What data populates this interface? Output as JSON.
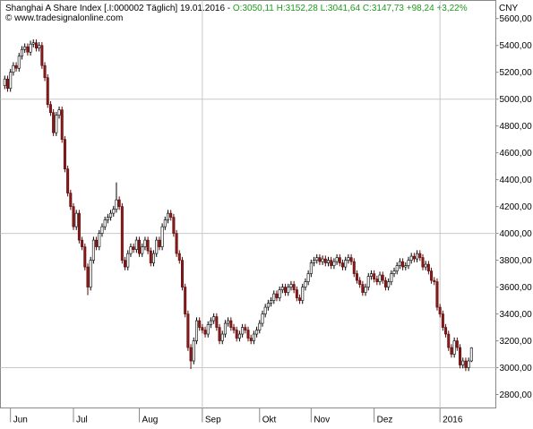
{
  "chart_data": {
    "type": "candlestick",
    "title": "Shanghai A Share Index [.I:000002  Täglich] 19.01.2016 -",
    "subtitle": "O:3050,11  H:3152,28  L:3041,64  C:3147,73  +98,24  +3,22%",
    "source": "© www.tradesignalonline.com",
    "currency": "CNY",
    "colors": {
      "up": "#ffffff",
      "down": "#8b1a1a",
      "quote": "#1e9a1e"
    },
    "xlim": [
      -1.5,
      171.5
    ],
    "xticks": [
      {
        "value": 2,
        "label": "Jun"
      },
      {
        "value": 24,
        "label": "Jul"
      },
      {
        "value": 47,
        "label": "Aug"
      },
      {
        "value": 69,
        "label": "Sep"
      },
      {
        "value": 89,
        "label": "Okt"
      },
      {
        "value": 107,
        "label": "Nov"
      },
      {
        "value": 129,
        "label": "Dez"
      },
      {
        "value": 152,
        "label": "2016"
      }
    ],
    "grid_x": [
      69,
      152
    ],
    "grid_y": [
      3000,
      4000,
      5000
    ],
    "ylim": [
      2700,
      5735
    ],
    "yticks": [
      {
        "value": 2800,
        "label": "2800,00"
      },
      {
        "value": 3000,
        "label": "3000,00"
      },
      {
        "value": 3200,
        "label": "3200,00"
      },
      {
        "value": 3400,
        "label": "3400,00"
      },
      {
        "value": 3600,
        "label": "3600,00"
      },
      {
        "value": 3800,
        "label": "3800,00"
      },
      {
        "value": 4000,
        "label": "4000,00"
      },
      {
        "value": 4200,
        "label": "4200,00"
      },
      {
        "value": 4400,
        "label": "4400,00"
      },
      {
        "value": 4600,
        "label": "4600,00"
      },
      {
        "value": 4800,
        "label": "4800,00"
      },
      {
        "value": 5000,
        "label": "5000,00"
      },
      {
        "value": 5200,
        "label": "5200,00"
      },
      {
        "value": 5400,
        "label": "5400,00"
      },
      {
        "value": 5600,
        "label": "5600,00"
      }
    ],
    "open": [
      5100,
      5150,
      5080,
      5200,
      5250,
      5230,
      5320,
      5370,
      5390,
      5350,
      5410,
      5420,
      5380,
      5400,
      5250,
      5160,
      4960,
      4900,
      4750,
      4880,
      4920,
      4700,
      4480,
      4300,
      4200,
      4050,
      4150,
      3950,
      3900,
      3750,
      3600,
      3800,
      3950,
      3900,
      4000,
      4050,
      4100,
      4120,
      4150,
      4180,
      4250,
      4200,
      3800,
      3750,
      3850,
      3900,
      3880,
      3950,
      3850,
      3900,
      3950,
      3870,
      3780,
      3850,
      3950,
      3900,
      4050,
      4100,
      4150,
      4120,
      4000,
      3850,
      3800,
      3600,
      3400,
      3150,
      3050,
      3200,
      3350,
      3300,
      3280,
      3250,
      3320,
      3350,
      3380,
      3300,
      3200,
      3250,
      3330,
      3350,
      3300,
      3280,
      3220,
      3250,
      3300,
      3280,
      3220,
      3200,
      3250,
      3280,
      3330,
      3400,
      3450,
      3480,
      3500,
      3550,
      3520,
      3580,
      3600,
      3560,
      3600,
      3620,
      3580,
      3520,
      3500,
      3600,
      3640,
      3700,
      3780,
      3800,
      3820,
      3790,
      3810,
      3780,
      3800,
      3760,
      3790,
      3820,
      3780,
      3750,
      3800,
      3820,
      3790,
      3700,
      3650,
      3620,
      3560,
      3600,
      3680,
      3700,
      3660,
      3640,
      3690,
      3650,
      3600,
      3640,
      3700,
      3720,
      3760,
      3790,
      3750,
      3760,
      3800,
      3830,
      3810,
      3850,
      3820,
      3750,
      3770,
      3720,
      3650,
      3640,
      3450,
      3400,
      3300,
      3250,
      3150,
      3100,
      3200,
      3150,
      3020,
      3050,
      3000,
      3050.11
    ],
    "high": [
      5175,
      5175,
      5225,
      5275,
      5275,
      5345,
      5395,
      5415,
      5415,
      5435,
      5445,
      5445,
      5425,
      5425,
      5275,
      5185,
      4985,
      4925,
      4905,
      4945,
      4945,
      4725,
      4505,
      4325,
      4225,
      4175,
      4175,
      3975,
      3925,
      3775,
      3825,
      3975,
      3975,
      4025,
      4075,
      4125,
      4145,
      4175,
      4205,
      4380,
      4275,
      4225,
      3825,
      3875,
      3925,
      3925,
      3975,
      3975,
      3925,
      3975,
      3975,
      3895,
      3875,
      3975,
      3975,
      4075,
      4125,
      4175,
      4175,
      4145,
      4025,
      3875,
      3825,
      3625,
      3425,
      3175,
      3225,
      3375,
      3375,
      3325,
      3305,
      3345,
      3375,
      3405,
      3405,
      3325,
      3275,
      3355,
      3375,
      3375,
      3325,
      3305,
      3275,
      3325,
      3325,
      3305,
      3245,
      3275,
      3305,
      3355,
      3425,
      3475,
      3505,
      3525,
      3575,
      3575,
      3605,
      3625,
      3625,
      3625,
      3645,
      3645,
      3605,
      3545,
      3625,
      3665,
      3725,
      3805,
      3825,
      3845,
      3845,
      3835,
      3835,
      3825,
      3825,
      3815,
      3845,
      3845,
      3805,
      3825,
      3845,
      3845,
      3815,
      3725,
      3675,
      3645,
      3625,
      3705,
      3725,
      3725,
      3685,
      3715,
      3715,
      3675,
      3665,
      3725,
      3745,
      3785,
      3815,
      3815,
      3785,
      3825,
      3855,
      3855,
      3875,
      3875,
      3845,
      3795,
      3795,
      3745,
      3675,
      3665,
      3475,
      3425,
      3325,
      3275,
      3175,
      3225,
      3225,
      3175,
      3075,
      3075,
      3075,
      3152.28
    ],
    "low": [
      5075,
      5055,
      5055,
      5175,
      5205,
      5205,
      5295,
      5345,
      5325,
      5325,
      5385,
      5355,
      5355,
      5225,
      5135,
      4935,
      4875,
      4725,
      4725,
      4855,
      4675,
      4455,
      4275,
      4175,
      4025,
      4025,
      3925,
      3875,
      3725,
      3540,
      3575,
      3775,
      3875,
      3875,
      3975,
      4025,
      4075,
      4095,
      4125,
      4155,
      4175,
      3775,
      3725,
      3725,
      3825,
      3855,
      3855,
      3825,
      3825,
      3875,
      3845,
      3755,
      3755,
      3825,
      3875,
      3875,
      4025,
      4075,
      4095,
      3975,
      3825,
      3775,
      3575,
      3375,
      3125,
      2990,
      3025,
      3175,
      3275,
      3255,
      3225,
      3225,
      3295,
      3325,
      3275,
      3175,
      3175,
      3225,
      3305,
      3275,
      3255,
      3195,
      3195,
      3225,
      3255,
      3195,
      3175,
      3175,
      3225,
      3255,
      3305,
      3375,
      3425,
      3455,
      3475,
      3495,
      3495,
      3555,
      3535,
      3535,
      3575,
      3555,
      3495,
      3475,
      3475,
      3575,
      3615,
      3675,
      3755,
      3775,
      3765,
      3765,
      3755,
      3755,
      3735,
      3735,
      3765,
      3755,
      3725,
      3725,
      3775,
      3765,
      3675,
      3625,
      3595,
      3535,
      3535,
      3575,
      3655,
      3635,
      3615,
      3615,
      3625,
      3575,
      3575,
      3615,
      3675,
      3695,
      3735,
      3725,
      3725,
      3735,
      3775,
      3785,
      3785,
      3795,
      3725,
      3725,
      3695,
      3625,
      3615,
      3425,
      3375,
      3275,
      3225,
      3125,
      3075,
      3075,
      3125,
      2995,
      2995,
      2975,
      2975,
      3041.64
    ],
    "close": [
      5150,
      5080,
      5200,
      5250,
      5230,
      5320,
      5370,
      5390,
      5350,
      5410,
      5420,
      5380,
      5400,
      5250,
      5160,
      4960,
      4900,
      4750,
      4880,
      4920,
      4700,
      4480,
      4300,
      4200,
      4050,
      4150,
      3950,
      3900,
      3750,
      3600,
      3800,
      3950,
      3900,
      4000,
      4050,
      4100,
      4120,
      4150,
      4180,
      4250,
      4200,
      3800,
      3750,
      3850,
      3900,
      3880,
      3950,
      3850,
      3900,
      3950,
      3870,
      3780,
      3850,
      3950,
      3900,
      4050,
      4100,
      4150,
      4120,
      4000,
      3850,
      3800,
      3600,
      3400,
      3150,
      3050,
      3200,
      3350,
      3300,
      3280,
      3250,
      3320,
      3350,
      3380,
      3300,
      3200,
      3250,
      3330,
      3350,
      3300,
      3280,
      3220,
      3250,
      3300,
      3280,
      3220,
      3200,
      3250,
      3280,
      3330,
      3400,
      3450,
      3480,
      3500,
      3550,
      3520,
      3580,
      3600,
      3560,
      3600,
      3620,
      3580,
      3520,
      3500,
      3600,
      3640,
      3700,
      3780,
      3800,
      3820,
      3790,
      3810,
      3780,
      3800,
      3760,
      3790,
      3820,
      3780,
      3750,
      3800,
      3820,
      3790,
      3700,
      3650,
      3620,
      3560,
      3600,
      3680,
      3700,
      3660,
      3640,
      3690,
      3650,
      3600,
      3640,
      3700,
      3720,
      3760,
      3790,
      3750,
      3760,
      3800,
      3830,
      3810,
      3850,
      3820,
      3750,
      3770,
      3720,
      3650,
      3640,
      3450,
      3400,
      3300,
      3250,
      3150,
      3100,
      3200,
      3150,
      3020,
      3050,
      3000,
      3050,
      3147.73
    ]
  }
}
